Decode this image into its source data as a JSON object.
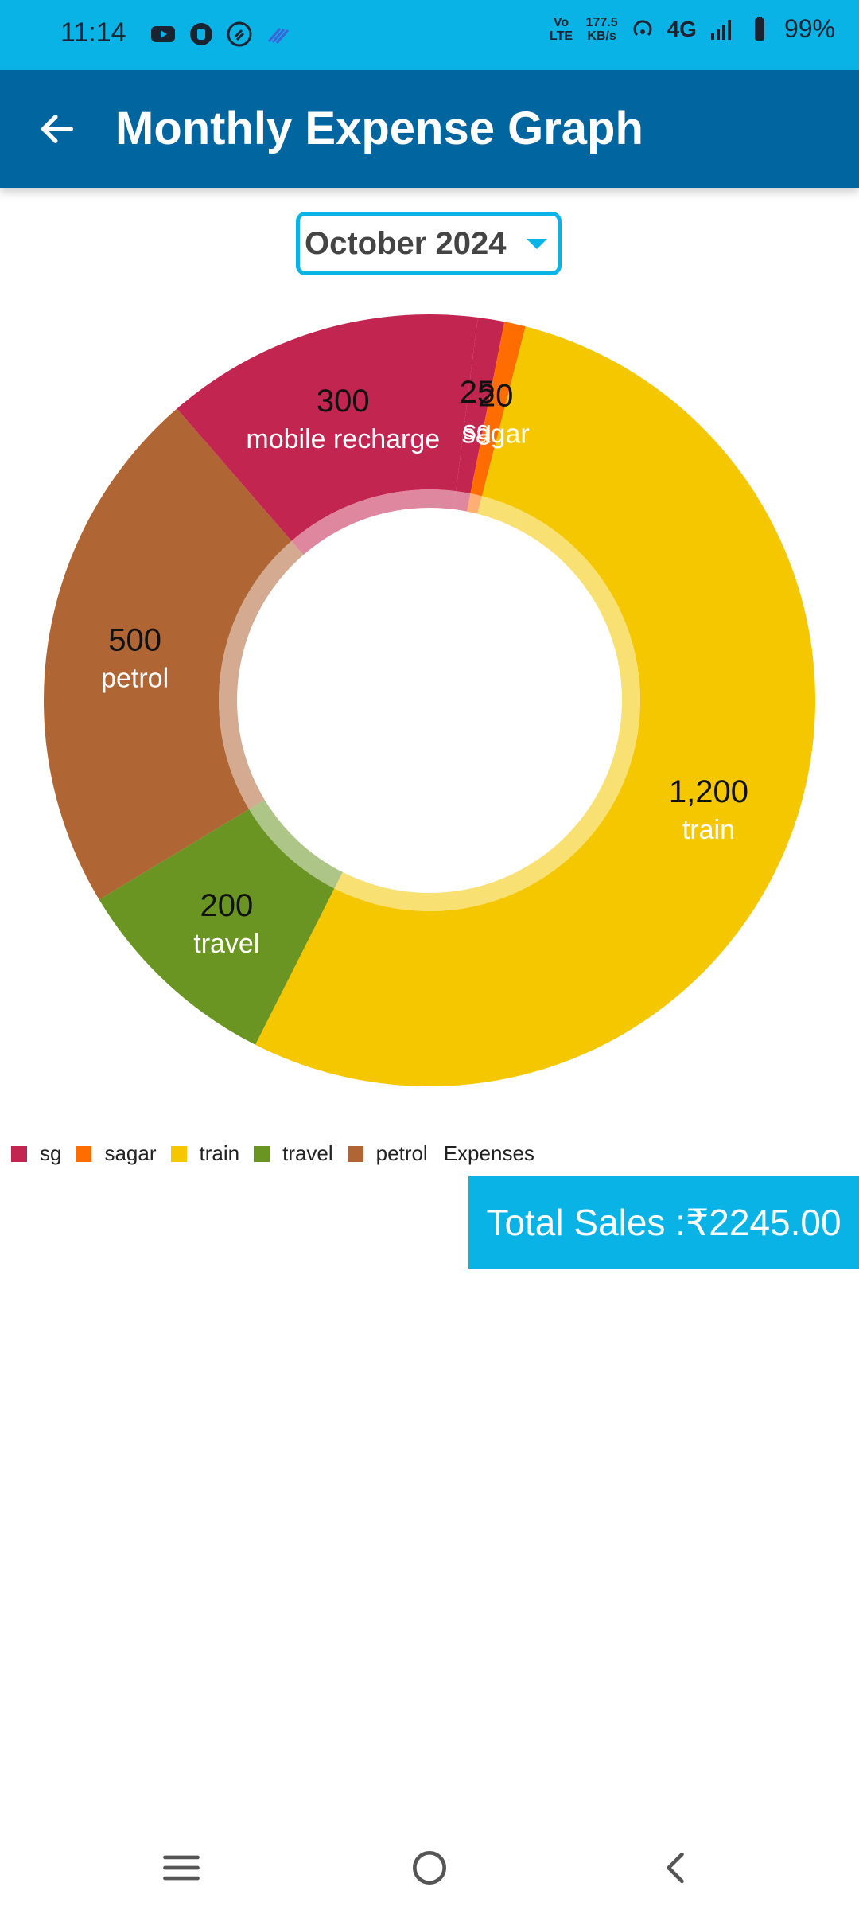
{
  "status_bar": {
    "time": "11:14",
    "volte": "Vo LTE",
    "speed_value": "177.5",
    "speed_unit": "KB/s",
    "network": "4G",
    "battery": "99%"
  },
  "app_bar": {
    "title": "Monthly Expense Graph"
  },
  "month_selector": {
    "value": "October 2024"
  },
  "chart_data": {
    "type": "pie",
    "donut": true,
    "categories": [
      "sg",
      "sagar",
      "train",
      "travel",
      "petrol",
      "mobile recharge"
    ],
    "values": [
      25,
      20,
      1200,
      200,
      500,
      300
    ],
    "value_labels": [
      "25",
      "20",
      "1,200",
      "200",
      "500",
      "300"
    ],
    "colors": [
      "#c2254f",
      "#ff6d00",
      "#f4c700",
      "#6a9523",
      "#b06535",
      "#c2254f"
    ],
    "legend": {
      "items": [
        "sg",
        "sagar",
        "train",
        "travel",
        "petrol"
      ],
      "title": "Expenses",
      "placement": "bottom-left"
    }
  },
  "total": {
    "label": "Total Sales :₹2245.00"
  },
  "colors": {
    "status_bar": "#0ab3e6",
    "app_bar": "#01669f",
    "accent": "#0ab3e6"
  }
}
